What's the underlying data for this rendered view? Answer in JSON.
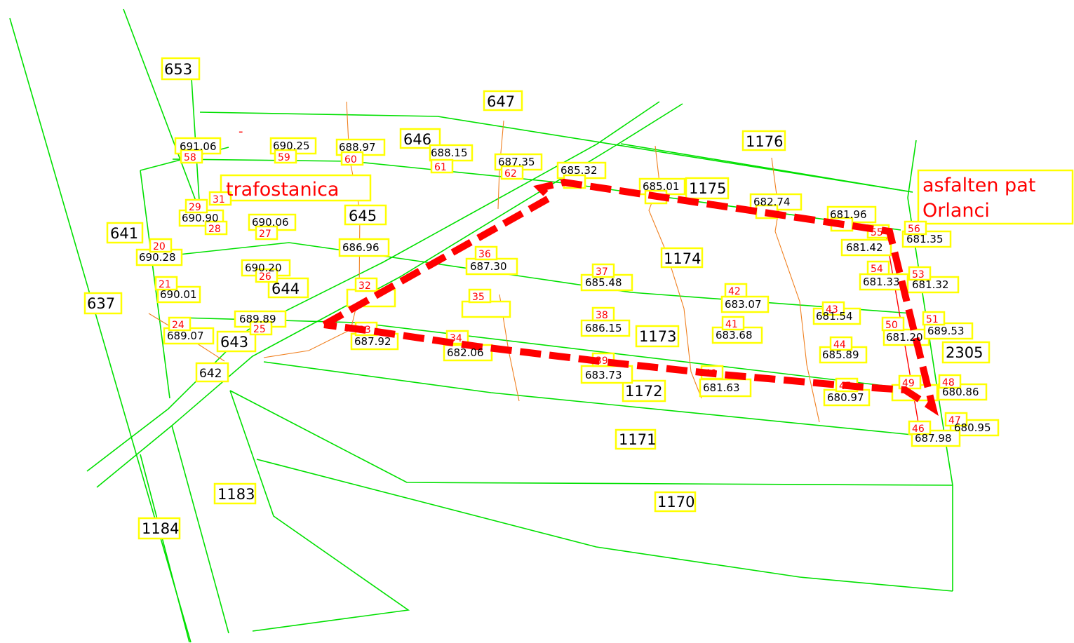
{
  "parcels": [
    "653",
    "647",
    "646",
    "1176",
    "641",
    "645",
    "637",
    "644",
    "643",
    "642",
    "1175",
    "1174",
    "1173",
    "1172",
    "1171",
    "1170",
    "1183",
    "1184",
    "2305"
  ],
  "elevations": [
    "691.06",
    "690.25",
    "688.97",
    "688.15",
    "687.35",
    "685.32",
    "685.01",
    "682.74",
    "681.96",
    "681.42",
    "681.35",
    "690.90",
    "690.06",
    "686.96",
    "690.28",
    "690.20",
    "687.30",
    "685.48",
    "690.01",
    "683.07",
    "681.54",
    "681.33",
    "681.32",
    "689.89",
    "686.15",
    "683.68",
    "681.20",
    "689.53",
    "689.07",
    "687.92",
    "682.06",
    "685.89",
    "683.73",
    "681.63",
    "680.97",
    "680.86",
    "680.95",
    "687.98"
  ],
  "points": [
    "58",
    "59",
    "60",
    "61",
    "62",
    "29",
    "31",
    "28",
    "27",
    "20",
    "21",
    "24",
    "25",
    "26",
    "32",
    "33",
    "34",
    "35",
    "36",
    "37",
    "38",
    "39",
    "40",
    "41",
    "42",
    "43",
    "44",
    "45",
    "46",
    "47",
    "48",
    "49",
    "50",
    "51",
    "53",
    "54",
    "55",
    "56",
    "57"
  ],
  "labels": {
    "trafo": "trafostanica",
    "road1": "asfalten pat",
    "road2": "Orlanci",
    "dash": "-"
  }
}
